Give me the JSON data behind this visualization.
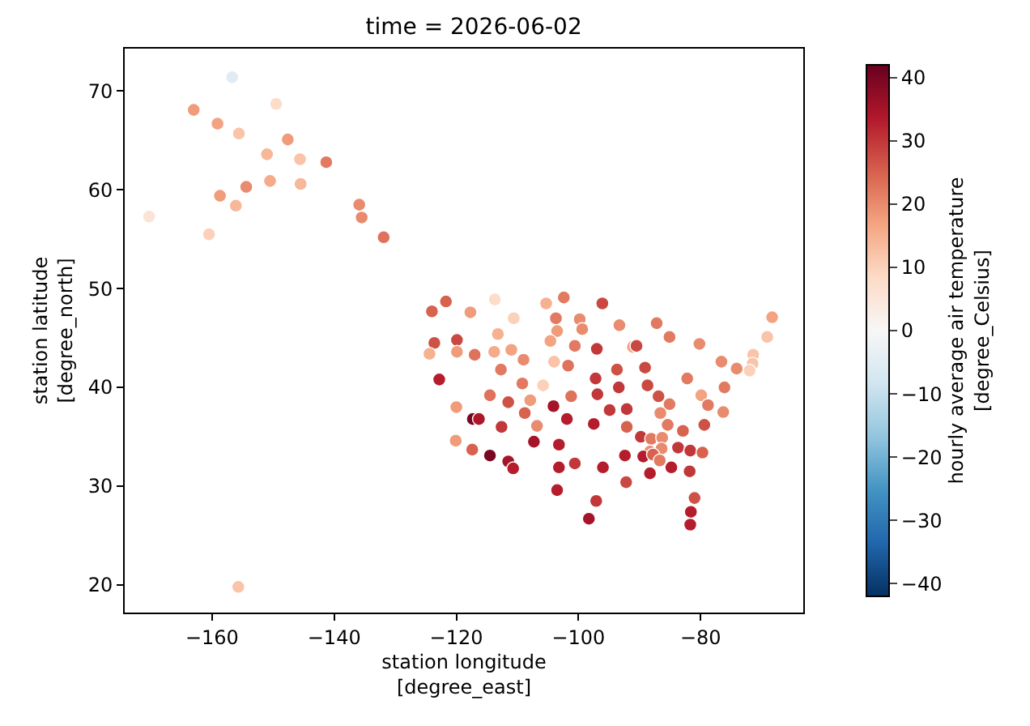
{
  "chart_data": {
    "type": "scatter",
    "title": "time = 2026-06-02",
    "xlabel": "station longitude\n[degree_east]",
    "ylabel": "station latitude\n[degree_north]",
    "clabel": "hourly average air temperature\n[degree_Celsius]",
    "x": [
      -156.7,
      -163,
      -149.5,
      -159.1,
      -155.6,
      -147.6,
      -151,
      -145.6,
      -141.3,
      -150.5,
      -145.5,
      -154.4,
      -158.7,
      -156.1,
      -135.9,
      -135.5,
      -131.9,
      -170.3,
      -160.5,
      -155.7,
      -121.7,
      -124,
      -113.7,
      -105.3,
      -102.4,
      -96.1,
      -117.7,
      -110.6,
      -103.7,
      -99.8,
      -93.3,
      -103.5,
      -99.4,
      -113.2,
      -123.6,
      -119.9,
      -124.4,
      -119.9,
      -117,
      -113.8,
      -111,
      -109,
      -104.6,
      -100.6,
      -97,
      -91.1,
      -104,
      -101.7,
      -112.7,
      -93.7,
      -97.2,
      -122.8,
      -109.2,
      -105.8,
      -93.4,
      -96.9,
      -101.2,
      -114.5,
      -111.5,
      -107.9,
      -120,
      -104.1,
      -108.8,
      -94.9,
      -92.1,
      -117.3,
      -116.3,
      -101.9,
      -106.8,
      -112.6,
      -97.5,
      -92.1,
      -120.1,
      -107.3,
      -103.2,
      -117.4,
      -114.5,
      -111.5,
      -110.7,
      -103.2,
      -100.6,
      -96,
      -92.4,
      -92.2,
      -103.5,
      -97.1,
      -98.3,
      -87.2,
      -85.1,
      -80.2,
      -68.3,
      -69.1,
      -90.5,
      -71.4,
      -71.5,
      -72,
      -76.6,
      -74.1,
      -82.2,
      -89.1,
      -88.7,
      -76.1,
      -79.9,
      -86.9,
      -85.1,
      -78.8,
      -76.3,
      -86.6,
      -85.4,
      -79.4,
      -82.9,
      -89.8,
      -88.1,
      -86.3,
      -83.7,
      -81.7,
      -79.7,
      -88.3,
      -86.4,
      -89.4,
      -87.8,
      -86.7,
      -84.8,
      -81.8,
      -88.3,
      -81,
      -81.6,
      -81.7
    ],
    "values": [
      71.4,
      68.1,
      68.7,
      66.7,
      65.7,
      65.1,
      63.6,
      63.1,
      62.8,
      60.9,
      60.6,
      60.3,
      59.4,
      58.4,
      58.5,
      57.2,
      55.2,
      57.3,
      55.5,
      19.8,
      48.7,
      47.7,
      48.9,
      48.5,
      49.1,
      48.5,
      47.6,
      47,
      47,
      46.9,
      46.3,
      45.7,
      45.9,
      45.4,
      44.5,
      44.8,
      43.4,
      43.6,
      43.3,
      43.6,
      43.8,
      42.8,
      44.7,
      44.2,
      43.9,
      44.1,
      42.6,
      42.2,
      41.8,
      41.8,
      40.9,
      40.8,
      40.4,
      40.2,
      40,
      39.3,
      39.1,
      39.2,
      38.5,
      38.7,
      38,
      38.1,
      37.4,
      37.7,
      37.8,
      36.8,
      36.8,
      36.8,
      36.1,
      36,
      36.3,
      36,
      34.6,
      34.5,
      34.2,
      33.7,
      33.1,
      32.5,
      31.8,
      31.9,
      32.3,
      31.9,
      33.1,
      30.4,
      29.6,
      28.5,
      26.7,
      46.5,
      45.1,
      44.4,
      47.1,
      45.1,
      44.2,
      43.3,
      42.4,
      41.7,
      42.6,
      41.9,
      40.9,
      42,
      40.2,
      40,
      39.2,
      39.1,
      38.3,
      38.2,
      37.5,
      37.4,
      36.2,
      36.2,
      35.6,
      35,
      34.8,
      34.9,
      33.9,
      33.6,
      33.4,
      33.5,
      33.8,
      33,
      33.2,
      32.6,
      31.9,
      31.5,
      31.3,
      28.8,
      27.4,
      26.1
    ],
    "cvalues": [
      -5,
      18,
      8,
      17,
      12,
      18,
      14,
      12,
      22,
      16,
      14,
      20,
      18,
      14,
      20,
      20,
      23,
      6,
      10,
      12,
      25,
      25,
      8,
      15,
      22,
      28,
      18,
      10,
      22,
      20,
      20,
      18,
      20,
      15,
      27,
      28,
      15,
      18,
      23,
      16,
      17,
      20,
      17,
      22,
      30,
      17,
      12,
      23,
      22,
      27,
      30,
      33,
      22,
      10,
      30,
      30,
      23,
      23,
      27,
      18,
      18,
      35,
      25,
      30,
      30,
      40,
      34,
      33,
      20,
      30,
      33,
      25,
      18,
      35,
      33,
      25,
      40,
      35,
      33,
      33,
      30,
      33,
      33,
      28,
      33,
      30,
      35,
      22,
      22,
      20,
      17,
      12,
      28,
      12,
      12,
      10,
      20,
      20,
      22,
      28,
      28,
      22,
      17,
      27,
      22,
      22,
      20,
      20,
      22,
      27,
      25,
      30,
      22,
      20,
      30,
      30,
      25,
      20,
      20,
      33,
      25,
      22,
      33,
      30,
      33,
      27,
      33,
      33
    ],
    "xlim": [
      -174.3,
      -63.2
    ],
    "xticks": [
      -160,
      -140,
      -120,
      -100,
      -80
    ],
    "ylim": [
      17.2,
      74.3
    ],
    "yticks": [
      20,
      30,
      40,
      50,
      60,
      70
    ],
    "clim": [
      -42,
      42
    ],
    "cticks": [
      -40,
      -30,
      -20,
      -10,
      0,
      10,
      20,
      30,
      40
    ],
    "grid": false,
    "marker": "circle"
  }
}
